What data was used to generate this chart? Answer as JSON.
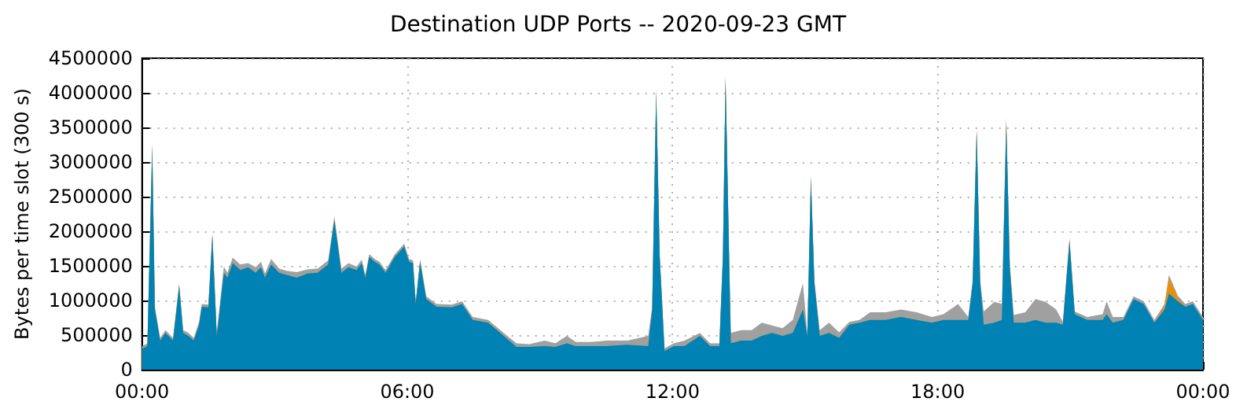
{
  "chart_data": {
    "type": "area",
    "title": "Destination UDP Ports -- 2020-09-23 GMT",
    "ylabel": "Bytes per time slot (300 s)",
    "stacked": true,
    "grid": true,
    "x": [
      0.0,
      0.12,
      0.23,
      0.29,
      0.41,
      0.53,
      0.7,
      0.84,
      0.93,
      1.05,
      1.17,
      1.29,
      1.35,
      1.5,
      1.59,
      1.69,
      1.85,
      1.93,
      2.05,
      2.22,
      2.4,
      2.57,
      2.69,
      2.78,
      2.92,
      3.1,
      3.27,
      3.5,
      3.74,
      3.97,
      4.21,
      4.35,
      4.51,
      4.67,
      4.85,
      4.97,
      5.05,
      5.14,
      5.26,
      5.37,
      5.51,
      5.72,
      5.93,
      6.04,
      6.13,
      6.19,
      6.29,
      6.43,
      6.66,
      7.01,
      7.24,
      7.48,
      7.83,
      8.18,
      8.47,
      8.76,
      9.11,
      9.35,
      9.61,
      9.81,
      10.16,
      10.51,
      10.98,
      11.45,
      11.54,
      11.63,
      11.71,
      11.82,
      12.03,
      12.27,
      12.62,
      12.85,
      13.06,
      13.14,
      13.2,
      13.28,
      13.32,
      13.55,
      13.79,
      14.02,
      14.25,
      14.49,
      14.72,
      14.95,
      15.05,
      15.13,
      15.21,
      15.33,
      15.54,
      15.77,
      16.0,
      16.23,
      16.47,
      16.82,
      17.17,
      17.52,
      17.87,
      18.13,
      18.46,
      18.69,
      18.79,
      18.88,
      18.96,
      19.04,
      19.28,
      19.45,
      19.55,
      19.63,
      19.72,
      19.98,
      20.21,
      20.44,
      20.68,
      20.83,
      20.98,
      21.1,
      21.38,
      21.73,
      21.82,
      21.96,
      22.2,
      22.43,
      22.66,
      22.9,
      23.13,
      23.23,
      23.43,
      23.6,
      23.77,
      24.0
    ],
    "series": [
      {
        "color": "#0083b4",
        "values": [
          300000,
          340000,
          3230000,
          870000,
          420000,
          530000,
          420000,
          1210000,
          530000,
          490000,
          420000,
          650000,
          910000,
          900000,
          1940000,
          490000,
          1400000,
          1330000,
          1540000,
          1440000,
          1480000,
          1400000,
          1480000,
          1330000,
          1520000,
          1400000,
          1370000,
          1330000,
          1390000,
          1400000,
          1520000,
          2160000,
          1400000,
          1480000,
          1440000,
          1540000,
          1330000,
          1630000,
          1560000,
          1520000,
          1400000,
          1630000,
          1780000,
          1560000,
          1540000,
          950000,
          1560000,
          1020000,
          910000,
          900000,
          950000,
          720000,
          680000,
          490000,
          330000,
          330000,
          340000,
          330000,
          380000,
          340000,
          340000,
          340000,
          360000,
          340000,
          870000,
          4020000,
          1630000,
          270000,
          340000,
          340000,
          490000,
          340000,
          340000,
          1630000,
          4210000,
          1630000,
          380000,
          420000,
          420000,
          490000,
          530000,
          490000,
          530000,
          870000,
          490000,
          2770000,
          1250000,
          490000,
          530000,
          460000,
          650000,
          680000,
          720000,
          720000,
          760000,
          720000,
          680000,
          720000,
          720000,
          720000,
          1250000,
          3450000,
          1250000,
          650000,
          680000,
          720000,
          3570000,
          1480000,
          680000,
          680000,
          720000,
          680000,
          680000,
          650000,
          1860000,
          800000,
          720000,
          720000,
          800000,
          680000,
          720000,
          1020000,
          950000,
          680000,
          870000,
          1100000,
          990000,
          910000,
          950000,
          720000
        ]
      },
      {
        "color": "#e8900c",
        "values": [
          0,
          0,
          0,
          0,
          0,
          0,
          0,
          0,
          0,
          0,
          0,
          0,
          0,
          0,
          0,
          0,
          0,
          0,
          0,
          0,
          0,
          0,
          0,
          0,
          0,
          0,
          0,
          0,
          0,
          0,
          0,
          0,
          0,
          0,
          0,
          0,
          0,
          0,
          0,
          0,
          0,
          0,
          0,
          0,
          0,
          0,
          0,
          0,
          0,
          0,
          0,
          0,
          0,
          0,
          0,
          0,
          0,
          0,
          0,
          0,
          0,
          0,
          0,
          0,
          0,
          0,
          0,
          0,
          0,
          0,
          0,
          0,
          0,
          0,
          0,
          0,
          0,
          0,
          0,
          0,
          0,
          0,
          0,
          0,
          0,
          0,
          0,
          0,
          0,
          0,
          0,
          0,
          0,
          0,
          0,
          0,
          0,
          0,
          0,
          0,
          0,
          0,
          0,
          0,
          0,
          0,
          0,
          0,
          0,
          0,
          0,
          0,
          0,
          0,
          0,
          0,
          0,
          0,
          0,
          0,
          0,
          0,
          null,
          0,
          40000,
          230000,
          40000,
          0,
          null,
          null
        ]
      },
      {
        "color": "#a0a0a0",
        "values": [
          40000,
          40000,
          40000,
          40000,
          40000,
          40000,
          40000,
          40000,
          40000,
          40000,
          40000,
          40000,
          40000,
          40000,
          40000,
          40000,
          90000,
          70000,
          80000,
          80000,
          60000,
          80000,
          80000,
          60000,
          80000,
          60000,
          60000,
          80000,
          60000,
          60000,
          60000,
          60000,
          60000,
          60000,
          50000,
          50000,
          40000,
          40000,
          40000,
          40000,
          40000,
          40000,
          40000,
          40000,
          40000,
          40000,
          40000,
          40000,
          40000,
          40000,
          40000,
          40000,
          40000,
          40000,
          50000,
          40000,
          80000,
          50000,
          110000,
          60000,
          60000,
          80000,
          60000,
          150000,
          40000,
          40000,
          40000,
          40000,
          40000,
          80000,
          40000,
          40000,
          40000,
          40000,
          40000,
          40000,
          150000,
          150000,
          150000,
          190000,
          110000,
          110000,
          190000,
          380000,
          40000,
          40000,
          40000,
          80000,
          150000,
          80000,
          40000,
          40000,
          110000,
          110000,
          110000,
          110000,
          80000,
          80000,
          230000,
          40000,
          40000,
          40000,
          40000,
          190000,
          300000,
          230000,
          80000,
          40000,
          110000,
          150000,
          300000,
          300000,
          190000,
          40000,
          40000,
          40000,
          40000,
          80000,
          190000,
          80000,
          40000,
          40000,
          40000,
          40000,
          40000,
          40000,
          40000,
          40000,
          40000,
          40000
        ]
      }
    ],
    "xlim": [
      0,
      24
    ],
    "xticks": [
      {
        "value": 0,
        "label": "00:00"
      },
      {
        "value": 6,
        "label": "06:00"
      },
      {
        "value": 12,
        "label": "12:00"
      },
      {
        "value": 18,
        "label": "18:00"
      },
      {
        "value": 24,
        "label": "00:00"
      }
    ],
    "ylim": [
      0,
      4500000
    ],
    "yticks": [
      0,
      500000,
      1000000,
      1500000,
      2000000,
      2500000,
      3000000,
      3500000,
      4000000,
      4500000
    ]
  }
}
